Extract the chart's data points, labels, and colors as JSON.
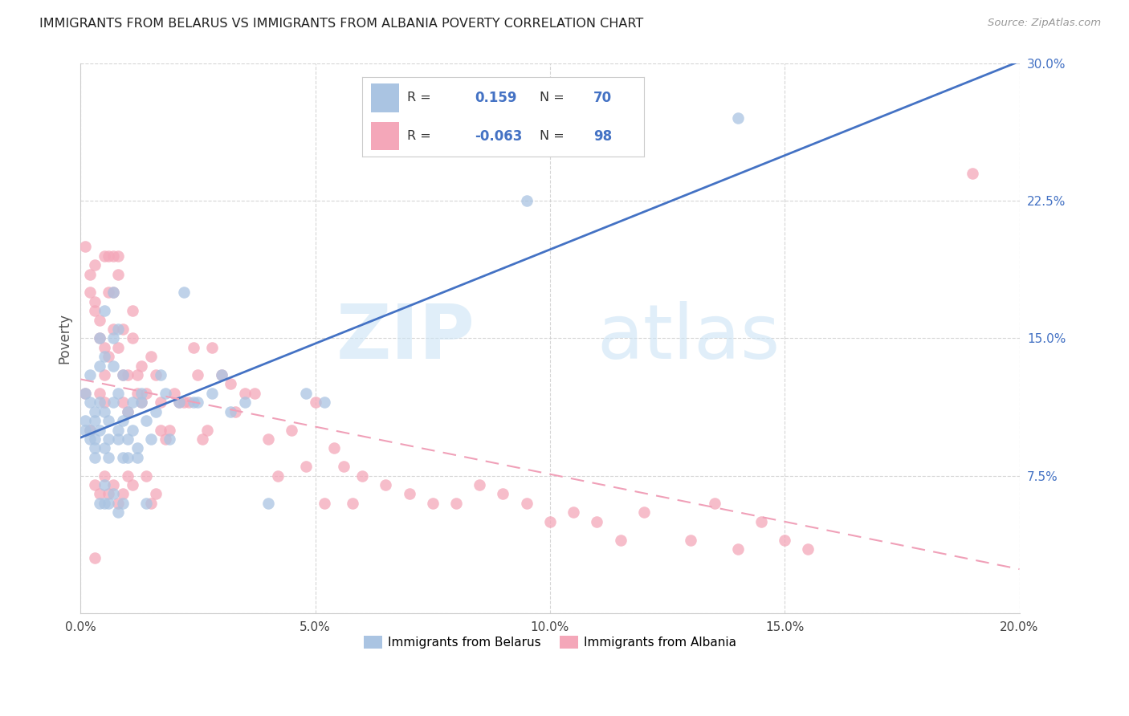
{
  "title": "IMMIGRANTS FROM BELARUS VS IMMIGRANTS FROM ALBANIA POVERTY CORRELATION CHART",
  "source": "Source: ZipAtlas.com",
  "ylabel": "Poverty",
  "xlim": [
    0.0,
    0.2
  ],
  "ylim": [
    0.0,
    0.3
  ],
  "xticks": [
    0.0,
    0.05,
    0.1,
    0.15,
    0.2
  ],
  "xtick_labels": [
    "0.0%",
    "5.0%",
    "10.0%",
    "15.0%",
    "20.0%"
  ],
  "yticks": [
    0.0,
    0.075,
    0.15,
    0.225,
    0.3
  ],
  "ytick_labels": [
    "",
    "7.5%",
    "15.0%",
    "22.5%",
    "30.0%"
  ],
  "color_belarus": "#aac4e2",
  "color_albania": "#f4a7b9",
  "trendline_belarus_color": "#4472c4",
  "trendline_albania_color": "#f0a0b8",
  "legend_r_belarus": "0.159",
  "legend_n_belarus": "70",
  "legend_r_albania": "-0.063",
  "legend_n_albania": "98",
  "belarus_x": [
    0.001,
    0.001,
    0.001,
    0.002,
    0.002,
    0.002,
    0.002,
    0.003,
    0.003,
    0.003,
    0.003,
    0.003,
    0.004,
    0.004,
    0.004,
    0.004,
    0.004,
    0.005,
    0.005,
    0.005,
    0.005,
    0.005,
    0.005,
    0.006,
    0.006,
    0.006,
    0.006,
    0.007,
    0.007,
    0.007,
    0.007,
    0.007,
    0.008,
    0.008,
    0.008,
    0.008,
    0.008,
    0.009,
    0.009,
    0.009,
    0.009,
    0.01,
    0.01,
    0.01,
    0.011,
    0.011,
    0.012,
    0.012,
    0.013,
    0.013,
    0.014,
    0.014,
    0.015,
    0.016,
    0.017,
    0.018,
    0.019,
    0.021,
    0.022,
    0.024,
    0.025,
    0.028,
    0.03,
    0.032,
    0.035,
    0.04,
    0.048,
    0.052,
    0.095,
    0.14
  ],
  "belarus_y": [
    0.105,
    0.12,
    0.1,
    0.095,
    0.13,
    0.115,
    0.1,
    0.09,
    0.11,
    0.095,
    0.085,
    0.105,
    0.115,
    0.135,
    0.15,
    0.1,
    0.06,
    0.09,
    0.11,
    0.14,
    0.06,
    0.07,
    0.165,
    0.095,
    0.085,
    0.105,
    0.06,
    0.115,
    0.135,
    0.15,
    0.175,
    0.065,
    0.1,
    0.095,
    0.12,
    0.055,
    0.155,
    0.085,
    0.105,
    0.13,
    0.06,
    0.11,
    0.085,
    0.095,
    0.1,
    0.115,
    0.085,
    0.09,
    0.115,
    0.12,
    0.105,
    0.06,
    0.095,
    0.11,
    0.13,
    0.12,
    0.095,
    0.115,
    0.175,
    0.115,
    0.115,
    0.12,
    0.13,
    0.11,
    0.115,
    0.06,
    0.12,
    0.115,
    0.225,
    0.27
  ],
  "albania_x": [
    0.001,
    0.001,
    0.002,
    0.002,
    0.002,
    0.003,
    0.003,
    0.003,
    0.003,
    0.003,
    0.004,
    0.004,
    0.004,
    0.004,
    0.005,
    0.005,
    0.005,
    0.005,
    0.005,
    0.006,
    0.006,
    0.006,
    0.006,
    0.007,
    0.007,
    0.007,
    0.007,
    0.008,
    0.008,
    0.008,
    0.008,
    0.009,
    0.009,
    0.009,
    0.009,
    0.01,
    0.01,
    0.01,
    0.011,
    0.011,
    0.011,
    0.012,
    0.012,
    0.013,
    0.013,
    0.014,
    0.014,
    0.015,
    0.015,
    0.016,
    0.016,
    0.017,
    0.017,
    0.018,
    0.019,
    0.02,
    0.021,
    0.022,
    0.023,
    0.024,
    0.025,
    0.026,
    0.027,
    0.028,
    0.03,
    0.032,
    0.033,
    0.035,
    0.037,
    0.04,
    0.042,
    0.045,
    0.048,
    0.05,
    0.052,
    0.054,
    0.056,
    0.058,
    0.06,
    0.065,
    0.07,
    0.075,
    0.08,
    0.085,
    0.09,
    0.095,
    0.1,
    0.105,
    0.11,
    0.115,
    0.12,
    0.13,
    0.135,
    0.14,
    0.145,
    0.15,
    0.155,
    0.19
  ],
  "albania_y": [
    0.12,
    0.2,
    0.175,
    0.185,
    0.1,
    0.17,
    0.165,
    0.19,
    0.07,
    0.03,
    0.15,
    0.16,
    0.065,
    0.12,
    0.13,
    0.145,
    0.195,
    0.075,
    0.115,
    0.175,
    0.195,
    0.14,
    0.065,
    0.195,
    0.175,
    0.155,
    0.07,
    0.185,
    0.195,
    0.06,
    0.145,
    0.155,
    0.13,
    0.115,
    0.065,
    0.11,
    0.13,
    0.075,
    0.165,
    0.15,
    0.07,
    0.12,
    0.13,
    0.115,
    0.135,
    0.12,
    0.075,
    0.14,
    0.06,
    0.13,
    0.065,
    0.1,
    0.115,
    0.095,
    0.1,
    0.12,
    0.115,
    0.115,
    0.115,
    0.145,
    0.13,
    0.095,
    0.1,
    0.145,
    0.13,
    0.125,
    0.11,
    0.12,
    0.12,
    0.095,
    0.075,
    0.1,
    0.08,
    0.115,
    0.06,
    0.09,
    0.08,
    0.06,
    0.075,
    0.07,
    0.065,
    0.06,
    0.06,
    0.07,
    0.065,
    0.06,
    0.05,
    0.055,
    0.05,
    0.04,
    0.055,
    0.04,
    0.06,
    0.035,
    0.05,
    0.04,
    0.035,
    0.24
  ]
}
